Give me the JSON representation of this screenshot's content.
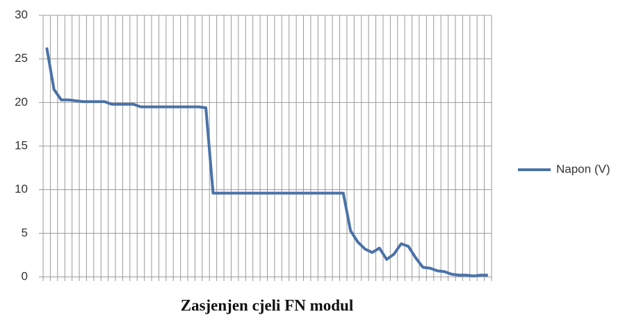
{
  "chart_data": {
    "type": "line",
    "title": "Zasjenjen cjeli FN modul",
    "categories": [
      null,
      null,
      null,
      null,
      null,
      null,
      null,
      null,
      null,
      null,
      null,
      null,
      null,
      null,
      null,
      null,
      null,
      null,
      null,
      null,
      null,
      null,
      null,
      null,
      null,
      null,
      null,
      null,
      null,
      null,
      null,
      null,
      null,
      null,
      null,
      null,
      null,
      null,
      null,
      null,
      null,
      null,
      null,
      null,
      null,
      null,
      null,
      null,
      null,
      null,
      null,
      null,
      null,
      null,
      null,
      null,
      null,
      null,
      null,
      null,
      null,
      null
    ],
    "series": [
      {
        "name": "Napon (V)",
        "color": "#4a72a8",
        "values": [
          26.3,
          21.5,
          20.3,
          20.3,
          20.2,
          20.1,
          20.1,
          20.1,
          20.1,
          19.8,
          19.8,
          19.8,
          19.8,
          19.5,
          19.5,
          19.5,
          19.5,
          19.5,
          19.5,
          19.5,
          19.5,
          19.5,
          19.4,
          9.6,
          9.6,
          9.6,
          9.6,
          9.6,
          9.6,
          9.6,
          9.6,
          9.6,
          9.6,
          9.6,
          9.6,
          9.6,
          9.6,
          9.6,
          9.6,
          9.6,
          9.6,
          9.6,
          5.3,
          4.0,
          3.2,
          2.8,
          3.3,
          2.0,
          2.6,
          3.8,
          3.5,
          2.2,
          1.1,
          1.0,
          0.7,
          0.6,
          0.3,
          0.2,
          0.2,
          0.1,
          0.2,
          0.2
        ]
      }
    ],
    "ylim": [
      0,
      30
    ],
    "yticks": [
      0,
      5,
      10,
      15,
      20,
      25,
      30
    ],
    "grid": true,
    "legend": "right"
  }
}
